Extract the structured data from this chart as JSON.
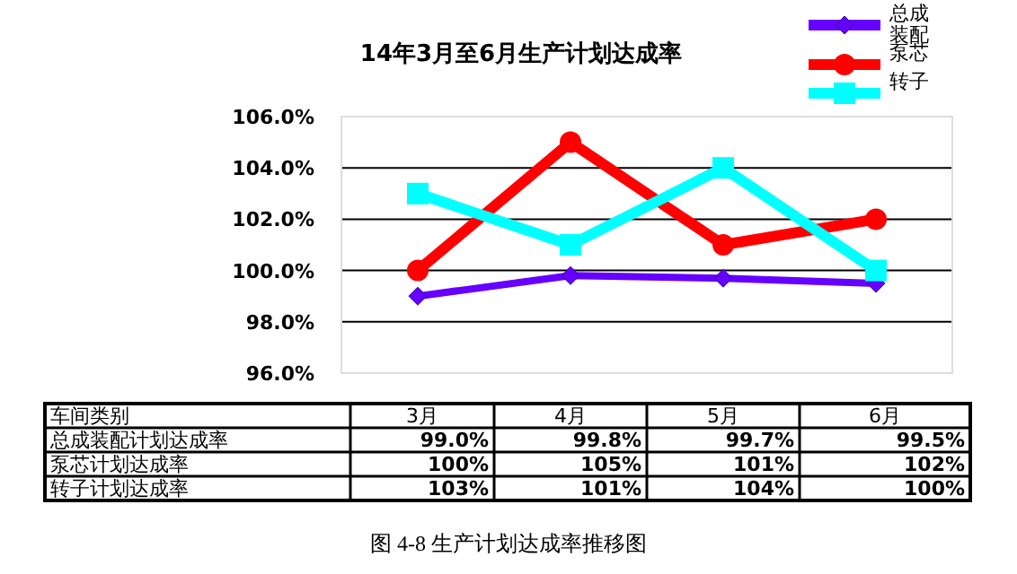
{
  "chart_data": {
    "type": "line",
    "title": "14年3月至6月生产计划达成率",
    "categories": [
      "3月",
      "4月",
      "5月",
      "6月"
    ],
    "series": [
      {
        "name": "总成装配",
        "color": "#6600ff",
        "marker": "diamond",
        "values": [
          99.0,
          99.8,
          99.7,
          99.5
        ],
        "value_labels": [
          "99.0%",
          "99.8%",
          "99.7%",
          "99.5%"
        ]
      },
      {
        "name": "泵芯",
        "color": "#ff0000",
        "marker": "circle",
        "values": [
          100,
          105,
          101,
          102
        ],
        "value_labels": [
          "100%",
          "105%",
          "101%",
          "102%"
        ]
      },
      {
        "name": "转子",
        "color": "#00ffff",
        "marker": "square",
        "values": [
          103,
          101,
          104,
          100
        ],
        "value_labels": [
          "103%",
          "101%",
          "104%",
          "100%"
        ]
      }
    ],
    "ylim": [
      96,
      106
    ],
    "yticks": [
      {
        "value": 96,
        "label": "96.0%"
      },
      {
        "value": 98,
        "label": "98.0%"
      },
      {
        "value": 100,
        "label": "100.0%"
      },
      {
        "value": 102,
        "label": "102.0%"
      },
      {
        "value": 104,
        "label": "104.0%"
      },
      {
        "value": 106,
        "label": "106.0%"
      }
    ],
    "grid": "y",
    "legend": "top right",
    "data_labels": true,
    "annotations": [
      "车间类别",
      "总成装配计划达成率",
      "泵芯计划达成率",
      "转子计划达成率",
      "图 4-8  生产计划达成率推移图"
    ]
  }
}
